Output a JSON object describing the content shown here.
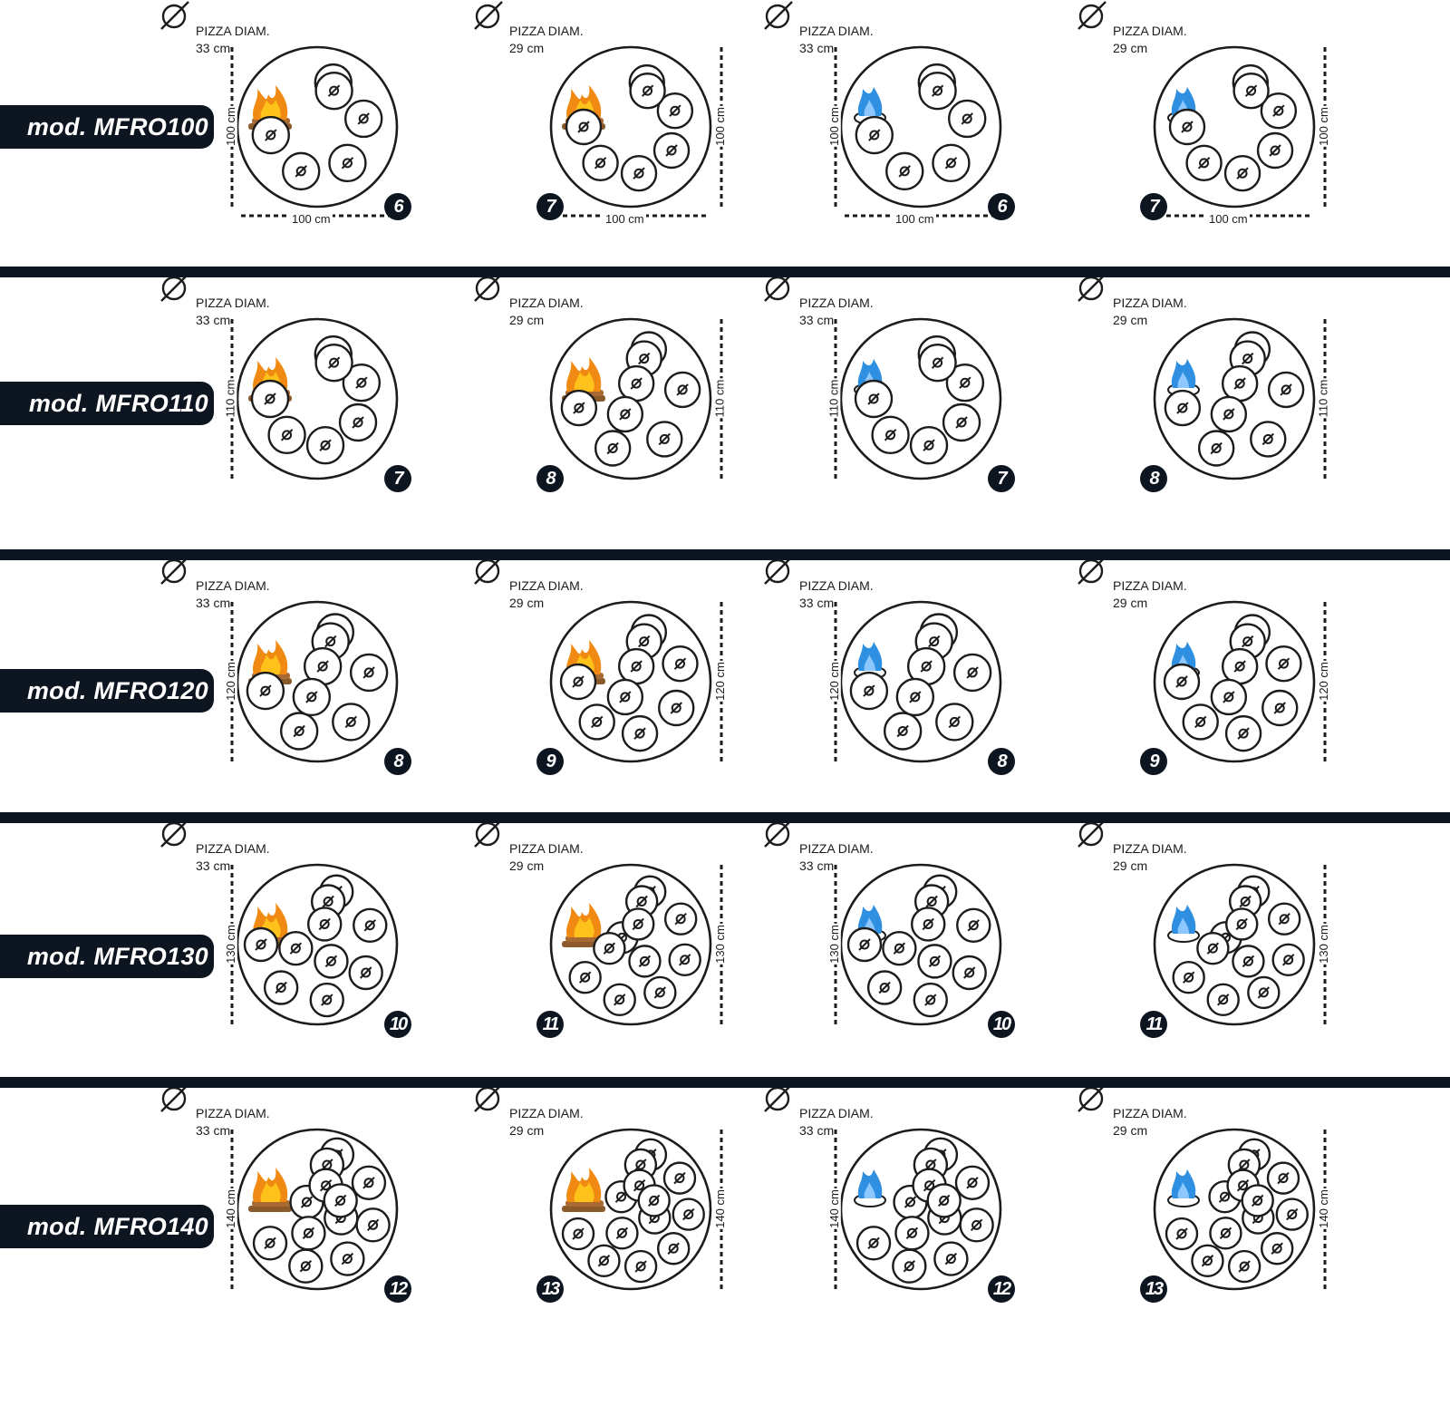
{
  "colors": {
    "dark": "#0d1620",
    "flame_orange": "#f08a12",
    "flame_yellow": "#ffc21a",
    "gas_blue": "#2f8fe0",
    "wood": "#8a5a2b"
  },
  "pizza_diam_label": "PIZZA DIAM.",
  "pizza_symbol": "Ø",
  "columns": [
    {
      "fuel": "wood",
      "fuel_icon": "wood-fire-icon",
      "pizza_size": "33 cm"
    },
    {
      "fuel": "wood",
      "fuel_icon": "wood-fire-icon",
      "pizza_size": "29 cm"
    },
    {
      "fuel": "gas",
      "fuel_icon": "gas-flame-icon",
      "pizza_size": "33 cm"
    },
    {
      "fuel": "gas",
      "fuel_icon": "gas-flame-icon",
      "pizza_size": "29 cm"
    }
  ],
  "models": [
    {
      "name": "mod. MFRO100",
      "dimension": "100 cm",
      "counts": [
        "6",
        "7",
        "6",
        "7"
      ]
    },
    {
      "name": "mod. MFRO110",
      "dimension": "110 cm",
      "counts": [
        "7",
        "8",
        "7",
        "8"
      ]
    },
    {
      "name": "mod. MFRO120",
      "dimension": "120 cm",
      "counts": [
        "8",
        "9",
        "8",
        "9"
      ]
    },
    {
      "name": "mod. MFRO130",
      "dimension": "130 cm",
      "counts": [
        "10",
        "11",
        "10",
        "11"
      ]
    },
    {
      "name": "mod. MFRO140",
      "dimension": "140 cm",
      "counts": [
        "12",
        "13",
        "12",
        "13"
      ]
    }
  ]
}
